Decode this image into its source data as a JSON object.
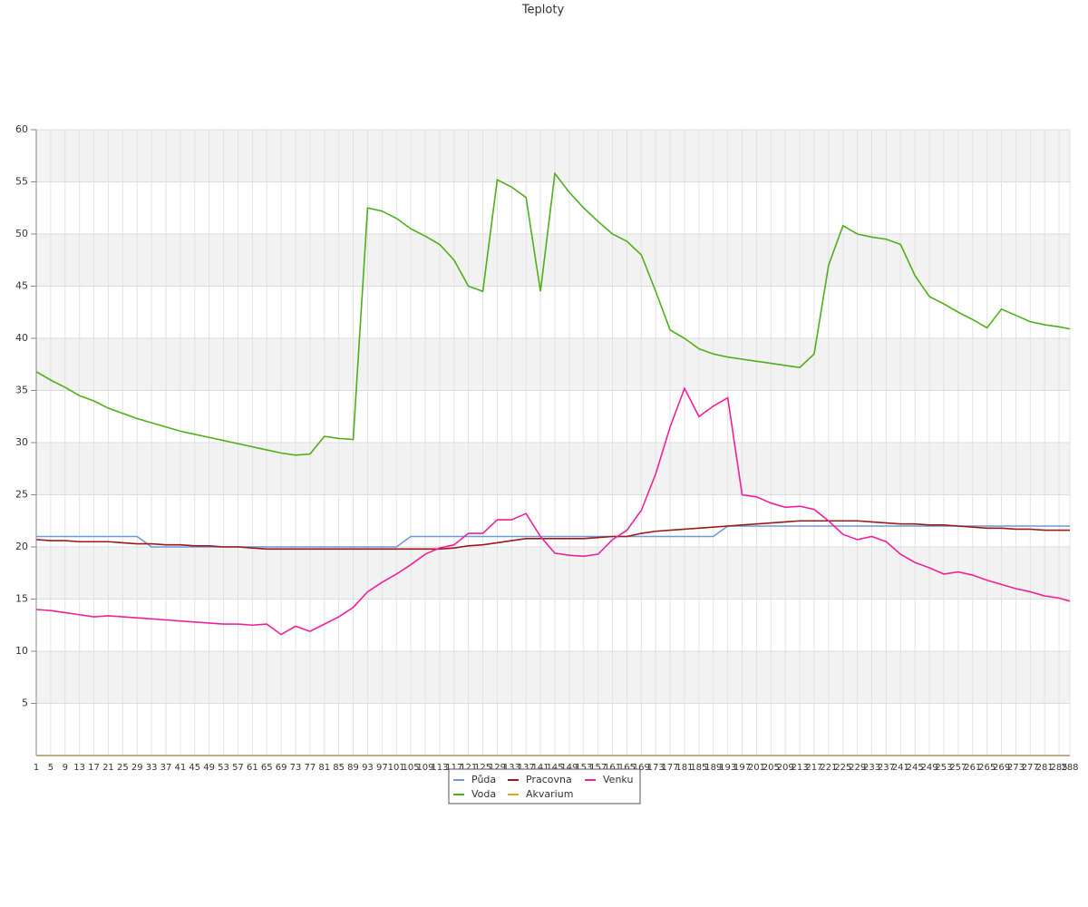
{
  "chart_data": {
    "type": "line",
    "title": "Teploty",
    "x": [
      1,
      5,
      9,
      13,
      17,
      21,
      25,
      29,
      33,
      37,
      41,
      45,
      49,
      53,
      57,
      61,
      65,
      69,
      73,
      77,
      81,
      85,
      89,
      93,
      97,
      101,
      105,
      109,
      113,
      117,
      121,
      125,
      129,
      133,
      137,
      141,
      145,
      149,
      153,
      157,
      161,
      165,
      169,
      173,
      177,
      181,
      185,
      189,
      193,
      197,
      201,
      205,
      209,
      213,
      217,
      221,
      225,
      229,
      233,
      237,
      241,
      245,
      249,
      253,
      257,
      261,
      265,
      269,
      273,
      277,
      281,
      285,
      288
    ],
    "xlim": [
      1,
      288
    ],
    "ylim": [
      0,
      60
    ],
    "yticks": [
      5,
      10,
      15,
      20,
      25,
      30,
      35,
      40,
      45,
      50,
      55,
      60
    ],
    "grid": true,
    "legend": "bottom",
    "series": [
      {
        "name": "Půda",
        "color": "#6f98d8",
        "values": [
          21,
          21,
          21,
          21,
          21,
          21,
          21,
          21,
          20,
          20,
          20,
          20,
          20,
          20,
          20,
          20,
          20,
          20,
          20,
          20,
          20,
          20,
          20,
          20,
          20,
          20,
          21,
          21,
          21,
          21,
          21,
          21,
          21,
          21,
          21,
          21,
          21,
          21,
          21,
          21,
          21,
          21,
          21,
          21,
          21,
          21,
          21,
          21,
          22,
          22,
          22,
          22,
          22,
          22,
          22,
          22,
          22,
          22,
          22,
          22,
          22,
          22,
          22,
          22,
          22,
          22,
          22,
          22,
          22,
          22,
          22,
          22,
          22
        ]
      },
      {
        "name": "Voda",
        "color": "#4db017",
        "values": [
          36.8,
          36,
          35.3,
          34.5,
          34,
          33.3,
          32.8,
          32.3,
          31.9,
          31.5,
          31.1,
          30.8,
          30.5,
          30.2,
          29.9,
          29.6,
          29.3,
          29,
          28.8,
          28.9,
          30.6,
          30.4,
          30.3,
          52.5,
          52.2,
          51.5,
          50.5,
          49.8,
          49,
          47.5,
          45,
          44.5,
          55.2,
          54.5,
          53.5,
          44.5,
          55.8,
          54,
          52.5,
          51.2,
          50,
          49.3,
          48,
          44.5,
          40.8,
          40,
          39,
          38.5,
          38.2,
          38,
          37.8,
          37.6,
          37.4,
          37.2,
          38.5,
          47,
          50.8,
          50,
          49.7,
          49.5,
          49,
          46,
          44,
          43.3,
          42.5,
          41.8,
          41,
          42.8,
          42.2,
          41.6,
          41.3,
          41.1,
          40.9
        ]
      },
      {
        "name": "Pracovna",
        "color": "#a01818",
        "values": [
          20.7,
          20.6,
          20.6,
          20.5,
          20.5,
          20.5,
          20.4,
          20.3,
          20.3,
          20.2,
          20.2,
          20.1,
          20.1,
          20,
          20,
          19.9,
          19.8,
          19.8,
          19.8,
          19.8,
          19.8,
          19.8,
          19.8,
          19.8,
          19.8,
          19.8,
          19.8,
          19.8,
          19.8,
          19.9,
          20.1,
          20.2,
          20.4,
          20.6,
          20.8,
          20.8,
          20.8,
          20.8,
          20.8,
          20.9,
          21,
          21,
          21.3,
          21.5,
          21.6,
          21.7,
          21.8,
          21.9,
          22,
          22.1,
          22.2,
          22.3,
          22.4,
          22.5,
          22.5,
          22.5,
          22.5,
          22.5,
          22.4,
          22.3,
          22.2,
          22.2,
          22.1,
          22.1,
          22,
          21.9,
          21.8,
          21.8,
          21.7,
          21.7,
          21.6,
          21.6,
          21.6
        ]
      },
      {
        "name": "Akvarium",
        "color": "#e8a317",
        "values": [
          0,
          0,
          0,
          0,
          0,
          0,
          0,
          0,
          0,
          0,
          0,
          0,
          0,
          0,
          0,
          0,
          0,
          0,
          0,
          0,
          0,
          0,
          0,
          0,
          0,
          0,
          0,
          0,
          0,
          0,
          0,
          0,
          0,
          0,
          0,
          0,
          0,
          0,
          0,
          0,
          0,
          0,
          0,
          0,
          0,
          0,
          0,
          0,
          0,
          0,
          0,
          0,
          0,
          0,
          0,
          0,
          0,
          0,
          0,
          0,
          0,
          0,
          0,
          0,
          0,
          0,
          0,
          0,
          0,
          0,
          0,
          0,
          0
        ]
      },
      {
        "name": "Venku",
        "color": "#f0209a",
        "values": [
          14,
          13.9,
          13.7,
          13.5,
          13.3,
          13.4,
          13.3,
          13.2,
          13.1,
          13,
          12.9,
          12.8,
          12.7,
          12.6,
          12.6,
          12.5,
          12.6,
          11.6,
          12.4,
          11.9,
          12.6,
          13.3,
          14.2,
          15.7,
          16.6,
          17.4,
          18.3,
          19.3,
          19.9,
          20.2,
          21.3,
          21.3,
          22.6,
          22.6,
          23.2,
          21,
          19.4,
          19.2,
          19.1,
          19.3,
          20.7,
          21.6,
          23.5,
          27,
          31.5,
          35.2,
          32.5,
          33.5,
          34.3,
          25,
          24.8,
          24.2,
          23.8,
          23.9,
          23.6,
          22.5,
          21.2,
          20.7,
          21,
          20.5,
          19.3,
          18.5,
          18,
          17.4,
          17.6,
          17.3,
          16.8,
          16.4,
          16,
          15.7,
          15.3,
          15.1,
          14.8
        ]
      }
    ]
  }
}
